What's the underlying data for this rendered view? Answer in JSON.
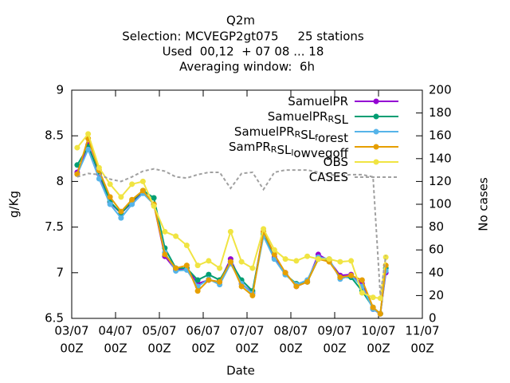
{
  "chart_data": {
    "type": "line",
    "title": [
      "Q2m",
      "Selection: MCVEGP2gt075     25 stations",
      "Used  00,12  + 07 08 ... 18",
      "Averaging window:  6h"
    ],
    "xlabel": "Date",
    "ylabel": "g/Kg",
    "y2label": "No cases",
    "legend": "top-right",
    "xlim": [
      0,
      192
    ],
    "ylim": [
      6.5,
      9
    ],
    "y2lim": [
      0,
      200
    ],
    "xticks": [
      {
        "value": 0,
        "label": [
          "03/07",
          "00Z"
        ]
      },
      {
        "value": 24,
        "label": [
          "04/07",
          "00Z"
        ]
      },
      {
        "value": 48,
        "label": [
          "05/07",
          "00Z"
        ]
      },
      {
        "value": 72,
        "label": [
          "06/07",
          "00Z"
        ]
      },
      {
        "value": 96,
        "label": [
          "07/07",
          "00Z"
        ]
      },
      {
        "value": 120,
        "label": [
          "08/07",
          "00Z"
        ]
      },
      {
        "value": 144,
        "label": [
          "09/07",
          "00Z"
        ]
      },
      {
        "value": 168,
        "label": [
          "10/07",
          "00Z"
        ]
      },
      {
        "value": 192,
        "label": [
          "11/07",
          "00Z"
        ]
      }
    ],
    "yticks": [
      6.5,
      7,
      7.5,
      8,
      8.5,
      9
    ],
    "y2ticks": [
      0,
      20,
      40,
      60,
      80,
      100,
      120,
      140,
      160,
      180,
      200
    ],
    "x": [
      3,
      9,
      15,
      21,
      27,
      33,
      39,
      45,
      51,
      57,
      63,
      69,
      75,
      81,
      87,
      93,
      99,
      105,
      111,
      117,
      123,
      129,
      135,
      141,
      147,
      153,
      159,
      165,
      169,
      172
    ],
    "series": [
      {
        "name": "SamuelPR",
        "color": "#9400d3",
        "values": [
          8.1,
          8.4,
          8.08,
          7.77,
          7.65,
          7.77,
          7.88,
          7.75,
          7.18,
          7.03,
          7.05,
          6.88,
          6.92,
          6.9,
          7.15,
          6.88,
          6.78,
          7.45,
          7.17,
          7.0,
          6.85,
          6.9,
          7.2,
          7.13,
          6.97,
          6.98,
          6.88,
          6.6,
          6.55,
          7.0
        ]
      },
      {
        "name": "SamuelPR_RSL",
        "color": "#009e73",
        "values": [
          8.18,
          8.38,
          8.1,
          7.78,
          7.65,
          7.78,
          7.9,
          7.82,
          7.27,
          7.05,
          7.05,
          6.92,
          6.98,
          6.92,
          7.12,
          6.92,
          6.8,
          7.42,
          7.15,
          6.98,
          6.88,
          6.9,
          7.15,
          7.13,
          6.95,
          6.95,
          6.8,
          6.62,
          6.55,
          7.05
        ]
      },
      {
        "name": "SamuelPR_RSL_forest",
        "color": "#56b4e9",
        "values": [
          8.08,
          8.35,
          8.03,
          7.75,
          7.6,
          7.75,
          7.87,
          7.75,
          7.22,
          7.02,
          7.03,
          6.85,
          6.93,
          6.87,
          7.1,
          6.88,
          6.77,
          7.4,
          7.15,
          6.98,
          6.87,
          6.92,
          7.17,
          7.15,
          6.93,
          6.97,
          6.85,
          6.6,
          6.55,
          7.02
        ]
      },
      {
        "name": "SamPR_RSL_lowvegoff",
        "color": "#e69f00",
        "values": [
          8.08,
          8.47,
          8.12,
          7.83,
          7.67,
          7.8,
          7.9,
          7.75,
          7.2,
          7.05,
          7.08,
          6.8,
          6.92,
          6.9,
          7.12,
          6.85,
          6.75,
          7.45,
          7.2,
          7.0,
          6.85,
          6.9,
          7.15,
          7.12,
          6.95,
          6.97,
          6.92,
          6.62,
          6.55,
          7.08
        ]
      },
      {
        "name": "OBS",
        "color": "#f0e442",
        "values": [
          8.37,
          8.52,
          8.15,
          7.97,
          7.83,
          7.97,
          8.0,
          7.73,
          7.45,
          7.4,
          7.3,
          7.08,
          7.13,
          7.05,
          7.45,
          7.12,
          7.05,
          7.48,
          7.25,
          7.15,
          7.13,
          7.18,
          7.15,
          7.15,
          7.12,
          7.13,
          6.78,
          6.73,
          6.72,
          7.17
        ]
      },
      {
        "name": "CASES",
        "color": "#a0a0a0",
        "axis": "y2",
        "dashed": true,
        "markers": false,
        "values": [
          124,
          127,
          126,
          122,
          120,
          124,
          129,
          131,
          129,
          124,
          123,
          126,
          128,
          128,
          114,
          127,
          128,
          113,
          128,
          130,
          130,
          130,
          128,
          126,
          125,
          126,
          126,
          124,
          20,
          55
        ]
      }
    ]
  }
}
